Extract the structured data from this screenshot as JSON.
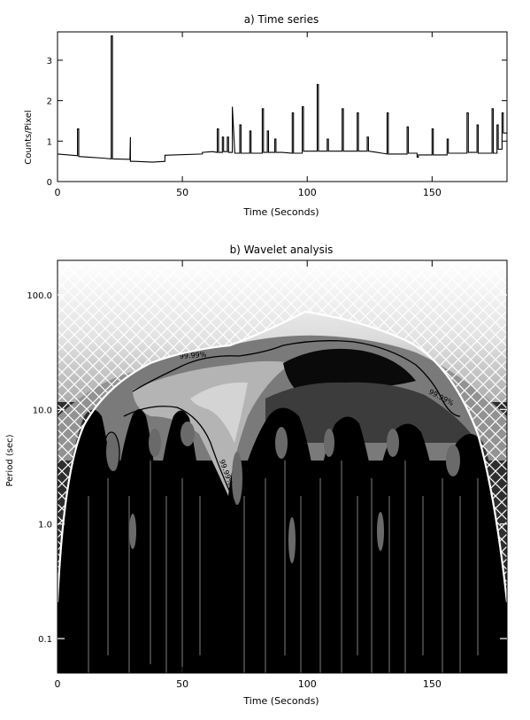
{
  "chart_data": [
    {
      "type": "line",
      "title": "a) Time series",
      "xlabel": "Time (Seconds)",
      "ylabel": "Counts/Pixel",
      "xlim": [
        0,
        180
      ],
      "ylim": [
        0,
        3.7
      ],
      "xticks": [
        0,
        50,
        100,
        150
      ],
      "yticks": [
        0,
        1,
        2,
        3
      ],
      "series": [
        {
          "x": [
            0,
            8,
            8,
            8.5,
            8.5,
            13,
            18,
            21.5,
            21.5,
            22,
            22,
            29,
            29.2,
            29.2,
            31,
            38,
            43,
            43,
            58,
            58,
            62,
            64,
            64,
            64.5,
            64.5,
            66,
            66,
            66.5,
            66.5,
            68,
            68,
            68.5,
            68.5,
            70,
            70,
            71,
            73,
            73,
            73.5,
            73.5,
            77,
            77,
            77.5,
            77.5,
            82,
            82,
            82.5,
            82.5,
            84,
            84,
            84.5,
            84.5,
            87,
            87,
            87.5,
            87.5,
            90,
            94,
            94,
            94.5,
            94.5,
            98,
            98,
            98.5,
            98.5,
            104,
            104,
            104.5,
            104.5,
            108,
            108,
            108.5,
            108.5,
            114,
            114,
            114.5,
            114.5,
            120,
            120,
            120.5,
            120.5,
            124,
            124,
            124.5,
            124.5,
            128,
            130,
            132,
            132,
            132.5,
            132.5,
            140,
            140,
            140.5,
            140.5,
            144,
            144,
            144.5,
            144.5,
            150,
            150,
            150.5,
            150.5,
            156,
            156,
            156.5,
            156.5,
            164,
            164,
            164.5,
            164.5,
            168,
            168,
            168.5,
            168.5,
            174,
            174,
            174.5,
            174.5,
            176,
            176,
            176.5,
            176.5,
            178,
            178,
            178.5,
            178.5,
            180
          ],
          "y": [
            0.68,
            0.64,
            1.3,
            1.3,
            0.62,
            0.6,
            0.58,
            0.56,
            3.6,
            3.6,
            0.56,
            0.55,
            1.1,
            0.5,
            0.5,
            0.48,
            0.5,
            0.65,
            0.68,
            0.72,
            0.74,
            0.72,
            1.3,
            1.3,
            0.72,
            0.72,
            1.1,
            1.1,
            0.74,
            0.74,
            1.1,
            1.1,
            0.72,
            0.72,
            1.85,
            0.7,
            0.7,
            1.4,
            1.4,
            0.7,
            0.7,
            1.25,
            1.25,
            0.7,
            0.7,
            1.8,
            1.8,
            0.72,
            0.72,
            1.25,
            1.25,
            0.72,
            0.72,
            1.05,
            1.05,
            0.72,
            0.72,
            0.7,
            1.7,
            1.7,
            0.7,
            0.7,
            1.85,
            1.85,
            0.75,
            0.75,
            2.4,
            2.4,
            0.75,
            0.75,
            1.05,
            1.05,
            0.75,
            0.75,
            1.8,
            1.8,
            0.75,
            0.75,
            1.7,
            1.7,
            0.75,
            0.75,
            1.1,
            1.1,
            0.75,
            0.72,
            0.7,
            0.68,
            1.7,
            1.7,
            0.68,
            0.68,
            1.35,
            1.35,
            0.7,
            0.7,
            0.6,
            0.6,
            0.66,
            0.66,
            1.3,
            1.3,
            0.66,
            0.66,
            1.05,
            1.05,
            0.7,
            0.7,
            1.7,
            1.7,
            0.72,
            0.72,
            1.4,
            1.4,
            0.7,
            0.7,
            1.8,
            1.8,
            0.7,
            0.7,
            1.4,
            1.4,
            0.8,
            0.8,
            1.7,
            1.7,
            1.2,
            1.2
          ]
        }
      ]
    },
    {
      "type": "heatmap",
      "title": "b) Wavelet analysis",
      "xlabel": "Time (Seconds)",
      "ylabel": "Period (sec)",
      "xlim": [
        0,
        180
      ],
      "ylim": [
        0.05,
        200
      ],
      "yscale": "log",
      "xticks": [
        0,
        50,
        100,
        150
      ],
      "yticks": [
        0.1,
        1.0,
        10.0,
        100.0
      ],
      "ytick_labels": [
        "0.1",
        "1.0",
        "10.0",
        "100.0"
      ],
      "contour_labels": [
        "99.99%",
        "99.99%",
        "99.99%"
      ],
      "colormap": [
        "#000000",
        "#3a3a3a",
        "#6e6e6e",
        "#a8a8a8",
        "#e0e0e0",
        "#ffffff"
      ],
      "cone_of_influence_color": "#ffffff"
    }
  ]
}
